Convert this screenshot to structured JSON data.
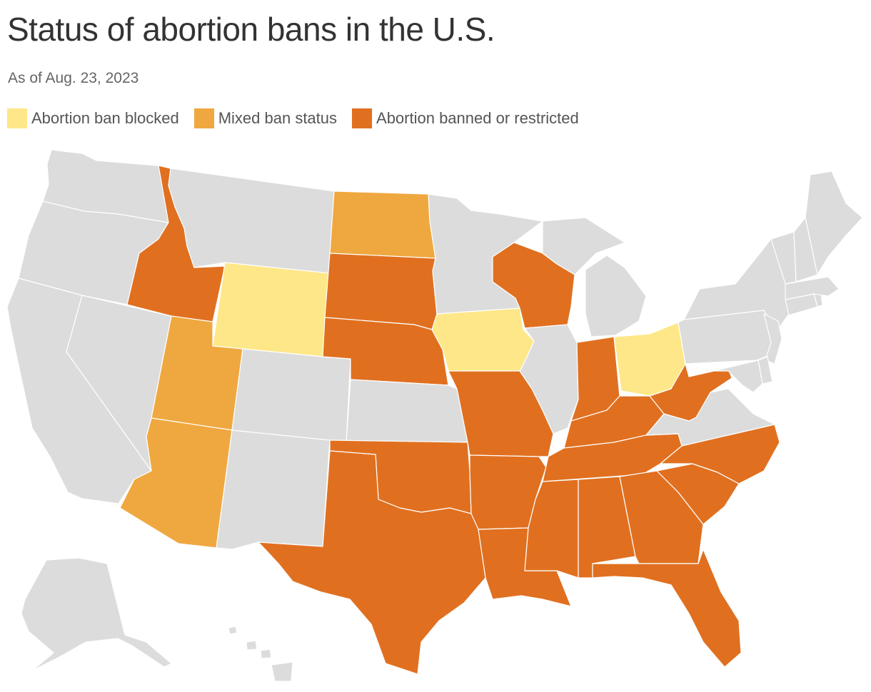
{
  "title": "Status of abortion bans in the U.S.",
  "subtitle": "As of Aug. 23, 2023",
  "legend": [
    {
      "label": "Abortion ban blocked",
      "status": "blocked"
    },
    {
      "label": "Mixed ban status",
      "status": "mixed"
    },
    {
      "label": "Abortion banned or restricted",
      "status": "banned"
    }
  ],
  "colors": {
    "blocked": "#fee788",
    "mixed": "#efa83f",
    "banned": "#e07020",
    "none": "#dcdcdc"
  },
  "states": {
    "WA": "none",
    "OR": "none",
    "CA": "none",
    "NV": "none",
    "ID": "banned",
    "MT": "none",
    "WY": "blocked",
    "UT": "mixed",
    "AZ": "mixed",
    "CO": "none",
    "NM": "none",
    "ND": "mixed",
    "SD": "banned",
    "NE": "banned",
    "KS": "none",
    "OK": "banned",
    "TX": "banned",
    "MN": "none",
    "IA": "blocked",
    "MO": "banned",
    "AR": "banned",
    "LA": "banned",
    "WI": "banned",
    "IL": "none",
    "MI": "none",
    "IN": "banned",
    "OH": "blocked",
    "KY": "banned",
    "TN": "banned",
    "MS": "banned",
    "AL": "banned",
    "GA": "banned",
    "FL": "banned",
    "SC": "banned",
    "NC": "banned",
    "VA": "none",
    "WV": "banned",
    "PA": "none",
    "NY": "none",
    "VT": "none",
    "NH": "none",
    "ME": "none",
    "MA": "none",
    "RI": "none",
    "CT": "none",
    "NJ": "none",
    "DE": "none",
    "MD": "none",
    "AK": "none",
    "HI": "none"
  }
}
